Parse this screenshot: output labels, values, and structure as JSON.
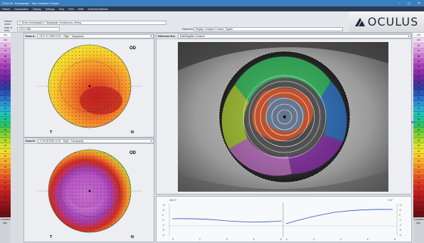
{
  "window": {
    "title": "OCULUS - Keratograph - Topo Compare 2 Exams",
    "min": "–",
    "max": "▢",
    "close": "✕"
  },
  "menu": [
    "Patient",
    "Examination",
    "Display",
    "Settings",
    "Help",
    "Print",
    "EMR",
    "External Software"
  ],
  "patient": {
    "name_label": "Patient name:",
    "name_value": "1, Demo_Keratograph 4, Topographic_Keratoconus_History",
    "dob_label": "Date of birth:",
    "dob_value": "10.11.1955",
    "id_label": "Patient ID:",
    "id_value": "Display: Compare 2 exams, Tippete"
  },
  "logo": {
    "text": "OCULUS",
    "icon": "oculus-logo-icon"
  },
  "scale": {
    "values": [
      "104",
      "100",
      "96",
      "92",
      "88",
      "84",
      "80",
      "76",
      "72",
      "68",
      "64",
      "60",
      "56",
      "52",
      "48",
      "44",
      "40",
      "36",
      "32",
      "30",
      "28",
      "26",
      "24",
      "22",
      "20",
      "18",
      "16",
      "14",
      "12",
      "10",
      "8",
      "6",
      "4",
      "2",
      "0"
    ],
    "colors": [
      "#f9f9f9",
      "#f1d7f1",
      "#e6b7e8",
      "#d996de",
      "#c974cf",
      "#b856c4",
      "#a33fb6",
      "#8b2fae",
      "#6e2aa0",
      "#4e2f9b",
      "#2f3fa6",
      "#2a58b8",
      "#2c75c9",
      "#2c93d2",
      "#28afcf",
      "#22c2b8",
      "#20c48f",
      "#33c462",
      "#5ec83f",
      "#8ad235",
      "#b3db30",
      "#d7e12f",
      "#f1de2e",
      "#f8c82d",
      "#f8ae2c",
      "#f5912a",
      "#f07328",
      "#e85526",
      "#dd3b24",
      "#cf2a22",
      "#bd2020",
      "#a81a1e",
      "#93161b",
      "#7d1318",
      "#691015"
    ],
    "footer": [
      "Curvature",
      "Abs."
    ]
  },
  "exam_a": {
    "label": "Exam A:",
    "select": "03.07.11 1998 10:41 · Right · Topography",
    "eye": "OD",
    "t": "T",
    "n": "N"
  },
  "exam_b": {
    "label": "Exam B:",
    "select": "3. 09.08.2005 14:01 · Right · Topography",
    "eye": "OD",
    "t": "T",
    "n": "N"
  },
  "difference": {
    "label": "Difference B-A:",
    "select": "Axial/Sagittal Curvature"
  },
  "graph": {
    "left_top_label": "180.0°",
    "right_top_label": "0.0°",
    "y_ticks_left": [
      "+2",
      "+1",
      "0",
      "-1",
      "-2",
      "-3",
      "-4"
    ],
    "y_ticks_right": [
      "+2",
      "+1",
      "0",
      "-1",
      "-2",
      "-3",
      "-4"
    ],
    "x_ticks": [
      "0",
      "2",
      "4",
      "6",
      "8"
    ]
  },
  "colors": {
    "titlebar": "#3a7fc0",
    "menubar": "#2d3b52",
    "accent": "#3a8fd8",
    "graph_line": "#2b4fc4"
  }
}
